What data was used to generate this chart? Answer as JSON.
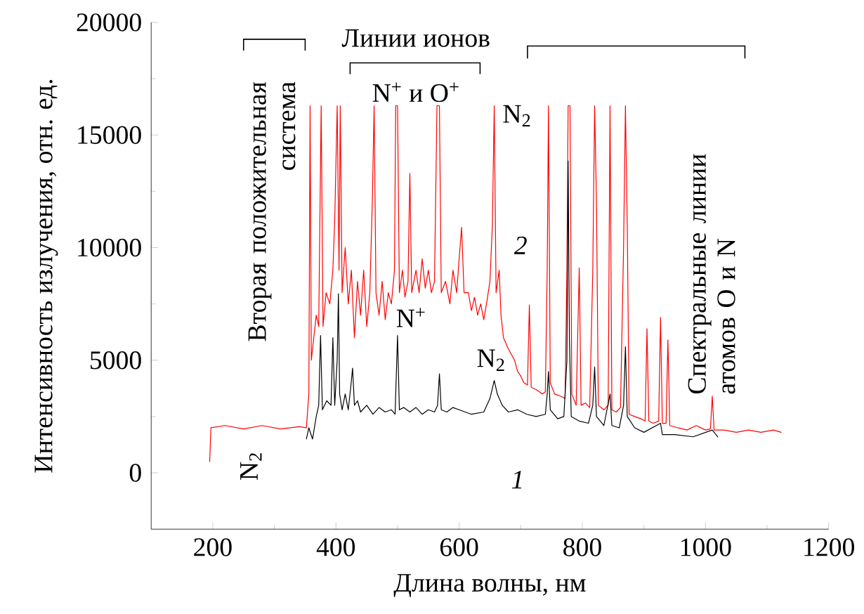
{
  "chart_data": {
    "type": "line",
    "xlabel": "Длина волны, нм",
    "ylabel": "Интенсивность излучения, отн. ед.",
    "xlim": [
      100,
      1200
    ],
    "xticks": [
      200,
      400,
      600,
      800,
      1000,
      1200
    ],
    "ylim": [
      -2500,
      20000
    ],
    "yticks": [
      0,
      5000,
      10000,
      15000,
      20000
    ],
    "series": [
      {
        "color": "#ff0000",
        "x": [
          195,
          197,
          220,
          250,
          280,
          310,
          340,
          352,
          356,
          358,
          360,
          364,
          368,
          372,
          376,
          379,
          384,
          390,
          395,
          398,
          402,
          405,
          407,
          410,
          415,
          420,
          425,
          430,
          435,
          440,
          445,
          450,
          455,
          459,
          462,
          465,
          470,
          475,
          480,
          485,
          490,
          495,
          497,
          500,
          503,
          508,
          512,
          517,
          520,
          523,
          530,
          535,
          540,
          545,
          550,
          555,
          560,
          564,
          568,
          571,
          578,
          585,
          590,
          596,
          600,
          604,
          608,
          615,
          620,
          625,
          630,
          635,
          640,
          645,
          650,
          654,
          657,
          660,
          665,
          668,
          672,
          680,
          690,
          695,
          700,
          705,
          711,
          714,
          717,
          725,
          735,
          740,
          743,
          745,
          748,
          755,
          765,
          772,
          775,
          777,
          780,
          783,
          790,
          795,
          798,
          805,
          812,
          817,
          820,
          823,
          826,
          835,
          842,
          845,
          848,
          855,
          862,
          867,
          870,
          873,
          876,
          885,
          895,
          902,
          905,
          908,
          915,
          924,
          927,
          930,
          936,
          939,
          942,
          955,
          970,
          985,
          1000,
          1008,
          1011,
          1014,
          1030,
          1050,
          1070,
          1090,
          1110,
          1123
        ],
        "values": [
          500,
          2000,
          2100,
          1950,
          2100,
          1950,
          2050,
          2000,
          3500,
          16300,
          5000,
          6000,
          7000,
          6500,
          16300,
          6500,
          8000,
          7500,
          9000,
          11200,
          16300,
          9000,
          16300,
          8000,
          10000,
          7500,
          9000,
          6000,
          8500,
          7000,
          9000,
          6500,
          8000,
          12000,
          16300,
          8000,
          7000,
          8500,
          6800,
          8000,
          7500,
          9000,
          16300,
          16300,
          8000,
          9000,
          7800,
          8500,
          13300,
          8000,
          9000,
          8000,
          9500,
          8200,
          9000,
          8000,
          8500,
          16300,
          16300,
          8000,
          8500,
          7500,
          9000,
          8000,
          9500,
          10900,
          8000,
          8000,
          7200,
          7800,
          7000,
          7500,
          6800,
          7600,
          8500,
          11000,
          16300,
          8000,
          9000,
          7000,
          6000,
          5500,
          5000,
          4500,
          4300,
          4000,
          3900,
          7450,
          3800,
          3700,
          3500,
          3600,
          9000,
          16300,
          4000,
          3500,
          3400,
          3300,
          9000,
          16300,
          16300,
          3500,
          3000,
          9100,
          3000,
          3100,
          2900,
          9000,
          16300,
          12000,
          3000,
          2800,
          3000,
          16300,
          2800,
          2700,
          2900,
          10000,
          16300,
          11000,
          2600,
          2500,
          2400,
          2300,
          6400,
          2300,
          2200,
          2300,
          6900,
          2200,
          2200,
          5900,
          2100,
          2000,
          1900,
          2100,
          1900,
          1950,
          3400,
          1900,
          1900,
          1800,
          1900,
          1800,
          1900,
          1800
        ]
      },
      {
        "color": "#000000",
        "x": [
          352,
          356,
          362,
          368,
          372,
          375,
          378,
          385,
          392,
          395,
          398,
          402,
          404,
          406,
          410,
          415,
          420,
          424,
          427,
          430,
          435,
          440,
          450,
          460,
          470,
          480,
          490,
          496,
          500,
          503,
          510,
          520,
          530,
          540,
          550,
          560,
          565,
          568,
          571,
          580,
          590,
          600,
          620,
          640,
          650,
          657,
          662,
          670,
          680,
          695,
          710,
          725,
          740,
          743,
          745,
          748,
          760,
          770,
          775,
          777,
          779,
          782,
          795,
          810,
          817,
          820,
          823,
          835,
          845,
          848,
          860,
          867,
          870,
          873,
          885,
          900,
          927,
          930,
          950,
          980,
          1011,
          1020
        ],
        "values": [
          1500,
          2000,
          1500,
          2500,
          3000,
          6100,
          2800,
          3200,
          3000,
          6000,
          3000,
          5000,
          7950,
          3500,
          2800,
          3500,
          2800,
          3800,
          4650,
          3000,
          3200,
          2700,
          3000,
          2600,
          2900,
          2700,
          2800,
          2600,
          6100,
          2800,
          2900,
          2700,
          2900,
          2600,
          2800,
          2700,
          3000,
          4400,
          2800,
          2700,
          2900,
          2800,
          2600,
          2700,
          3300,
          4100,
          3500,
          3000,
          2700,
          2800,
          2600,
          2500,
          2600,
          3500,
          4500,
          2800,
          2400,
          2500,
          5000,
          13850,
          6000,
          2500,
          2300,
          2200,
          3000,
          4700,
          2500,
          2100,
          3500,
          2100,
          2000,
          3000,
          5600,
          2500,
          2000,
          1800,
          2200,
          1700,
          1700,
          1600,
          1900,
          1600
        ]
      }
    ],
    "annotations": [
      "Линии ионов",
      "N$^{+}$ и O$^{+}$",
      "Вторая положительная система",
      "N$_{2}$",
      "N$_{2}$",
      "N$^{+}$",
      "N$_{2}$",
      "2",
      "1",
      "Спектральные линии атомов O и N"
    ]
  }
}
